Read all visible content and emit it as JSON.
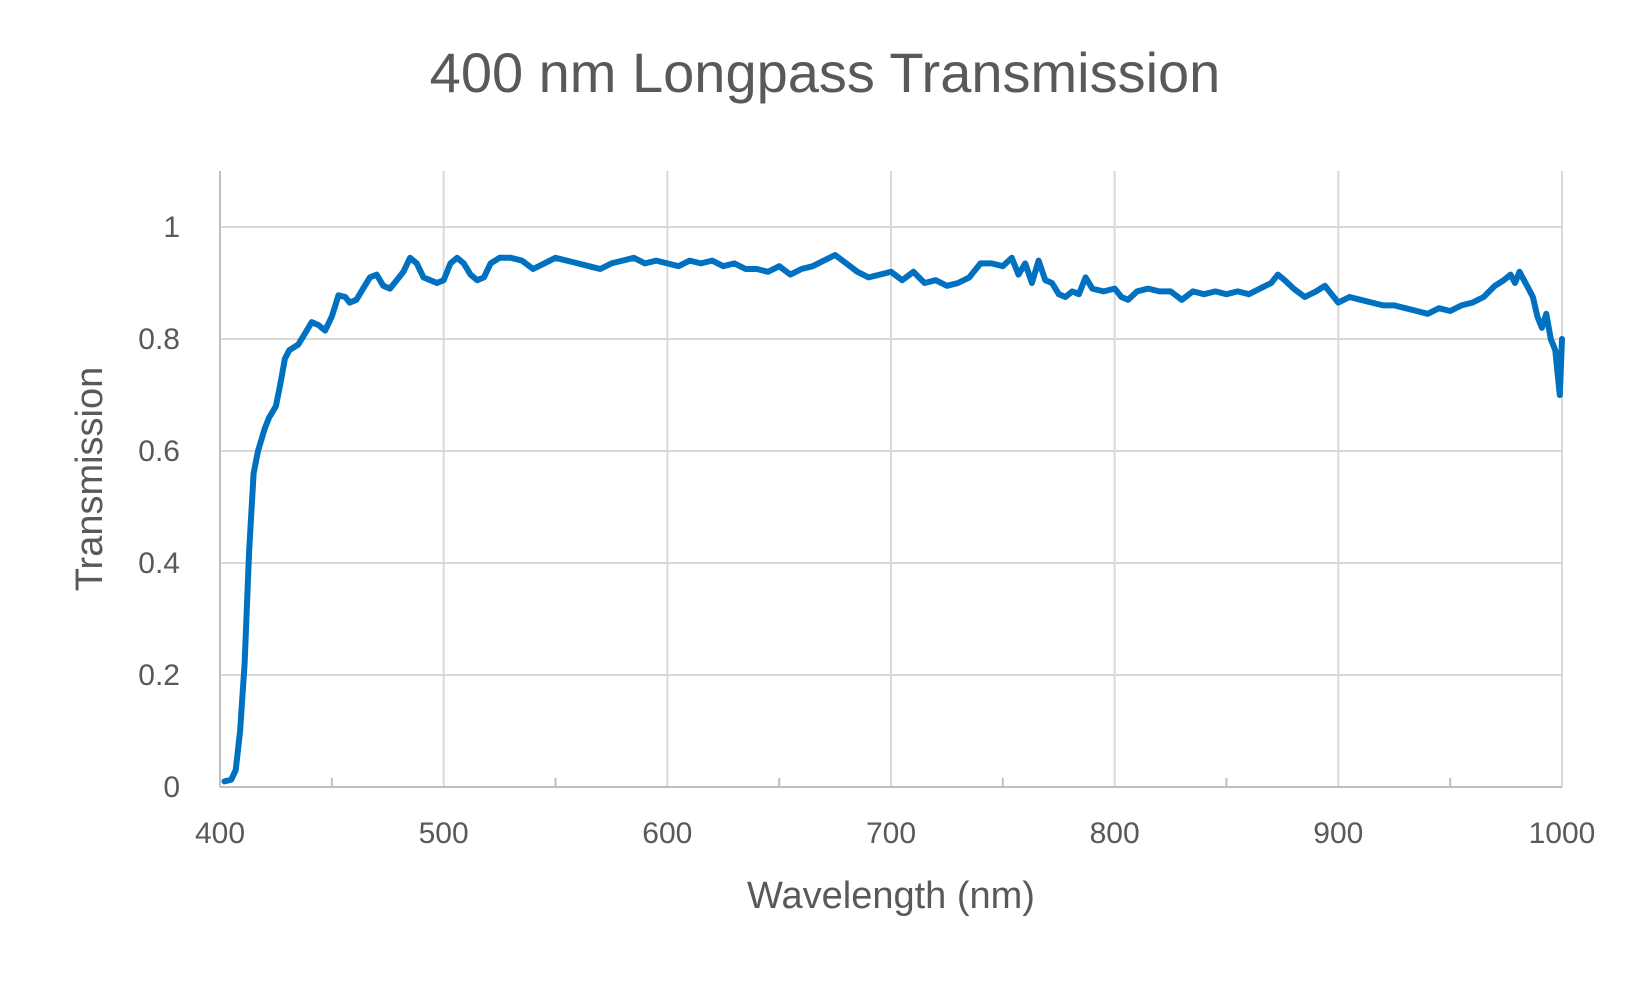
{
  "chart_data": {
    "type": "line",
    "title": "400 nm Longpass Transmission",
    "xlabel": "Wavelength (nm)",
    "ylabel": "Transmission",
    "xlim": [
      400,
      1000
    ],
    "ylim": [
      0,
      1.1
    ],
    "x_ticks": [
      400,
      500,
      600,
      700,
      800,
      900,
      1000
    ],
    "y_ticks": [
      0,
      0.2,
      0.4,
      0.6,
      0.8,
      1
    ],
    "y_tick_labels": [
      "0",
      "0.2",
      "0.4",
      "0.6",
      "0.8",
      "1"
    ],
    "x_minor_ticks": [
      450,
      550,
      650,
      750,
      850,
      950
    ],
    "grid": true,
    "line_color": "#0070c0",
    "series": [
      {
        "points": [
          [
            402,
            0.01
          ],
          [
            405,
            0.013
          ],
          [
            407,
            0.03
          ],
          [
            409,
            0.1
          ],
          [
            411,
            0.22
          ],
          [
            413,
            0.42
          ],
          [
            415,
            0.56
          ],
          [
            417,
            0.6
          ],
          [
            420,
            0.64
          ],
          [
            422,
            0.66
          ],
          [
            425,
            0.68
          ],
          [
            427,
            0.72
          ],
          [
            429,
            0.765
          ],
          [
            431,
            0.78
          ],
          [
            435,
            0.79
          ],
          [
            438,
            0.81
          ],
          [
            441,
            0.83
          ],
          [
            444,
            0.825
          ],
          [
            447,
            0.815
          ],
          [
            450,
            0.84
          ],
          [
            453,
            0.878
          ],
          [
            456,
            0.875
          ],
          [
            458,
            0.865
          ],
          [
            461,
            0.87
          ],
          [
            464,
            0.89
          ],
          [
            467,
            0.91
          ],
          [
            470,
            0.915
          ],
          [
            473,
            0.895
          ],
          [
            476,
            0.89
          ],
          [
            479,
            0.905
          ],
          [
            482,
            0.92
          ],
          [
            485,
            0.945
          ],
          [
            488,
            0.935
          ],
          [
            491,
            0.91
          ],
          [
            494,
            0.905
          ],
          [
            497,
            0.9
          ],
          [
            500,
            0.905
          ],
          [
            503,
            0.935
          ],
          [
            506,
            0.945
          ],
          [
            509,
            0.935
          ],
          [
            512,
            0.915
          ],
          [
            515,
            0.905
          ],
          [
            518,
            0.91
          ],
          [
            521,
            0.935
          ],
          [
            525,
            0.945
          ],
          [
            530,
            0.945
          ],
          [
            535,
            0.94
          ],
          [
            540,
            0.925
          ],
          [
            545,
            0.935
          ],
          [
            550,
            0.945
          ],
          [
            555,
            0.94
          ],
          [
            560,
            0.935
          ],
          [
            565,
            0.93
          ],
          [
            570,
            0.925
          ],
          [
            575,
            0.935
          ],
          [
            580,
            0.94
          ],
          [
            585,
            0.945
          ],
          [
            590,
            0.935
          ],
          [
            595,
            0.94
          ],
          [
            600,
            0.935
          ],
          [
            605,
            0.93
          ],
          [
            610,
            0.94
          ],
          [
            615,
            0.935
          ],
          [
            620,
            0.94
          ],
          [
            625,
            0.93
          ],
          [
            630,
            0.935
          ],
          [
            635,
            0.925
          ],
          [
            640,
            0.925
          ],
          [
            645,
            0.92
          ],
          [
            650,
            0.93
          ],
          [
            655,
            0.915
          ],
          [
            660,
            0.925
          ],
          [
            665,
            0.93
          ],
          [
            670,
            0.94
          ],
          [
            675,
            0.95
          ],
          [
            680,
            0.935
          ],
          [
            685,
            0.92
          ],
          [
            690,
            0.91
          ],
          [
            695,
            0.915
          ],
          [
            700,
            0.92
          ],
          [
            705,
            0.905
          ],
          [
            710,
            0.92
          ],
          [
            715,
            0.9
          ],
          [
            720,
            0.905
          ],
          [
            725,
            0.895
          ],
          [
            730,
            0.9
          ],
          [
            735,
            0.91
          ],
          [
            740,
            0.935
          ],
          [
            745,
            0.935
          ],
          [
            750,
            0.93
          ],
          [
            754,
            0.945
          ],
          [
            757,
            0.915
          ],
          [
            760,
            0.935
          ],
          [
            763,
            0.9
          ],
          [
            766,
            0.94
          ],
          [
            769,
            0.905
          ],
          [
            772,
            0.9
          ],
          [
            775,
            0.88
          ],
          [
            778,
            0.875
          ],
          [
            781,
            0.885
          ],
          [
            784,
            0.88
          ],
          [
            787,
            0.91
          ],
          [
            790,
            0.89
          ],
          [
            795,
            0.885
          ],
          [
            800,
            0.89
          ],
          [
            803,
            0.875
          ],
          [
            806,
            0.87
          ],
          [
            810,
            0.885
          ],
          [
            815,
            0.89
          ],
          [
            820,
            0.885
          ],
          [
            825,
            0.885
          ],
          [
            830,
            0.87
          ],
          [
            835,
            0.885
          ],
          [
            840,
            0.88
          ],
          [
            845,
            0.885
          ],
          [
            850,
            0.88
          ],
          [
            855,
            0.885
          ],
          [
            860,
            0.88
          ],
          [
            865,
            0.89
          ],
          [
            870,
            0.9
          ],
          [
            873,
            0.915
          ],
          [
            876,
            0.905
          ],
          [
            880,
            0.89
          ],
          [
            885,
            0.875
          ],
          [
            890,
            0.885
          ],
          [
            894,
            0.895
          ],
          [
            897,
            0.88
          ],
          [
            900,
            0.865
          ],
          [
            905,
            0.875
          ],
          [
            910,
            0.87
          ],
          [
            915,
            0.865
          ],
          [
            920,
            0.86
          ],
          [
            925,
            0.86
          ],
          [
            930,
            0.855
          ],
          [
            935,
            0.85
          ],
          [
            940,
            0.845
          ],
          [
            945,
            0.855
          ],
          [
            950,
            0.85
          ],
          [
            955,
            0.86
          ],
          [
            960,
            0.865
          ],
          [
            965,
            0.875
          ],
          [
            970,
            0.895
          ],
          [
            974,
            0.905
          ],
          [
            977,
            0.915
          ],
          [
            979,
            0.9
          ],
          [
            981,
            0.92
          ],
          [
            983,
            0.905
          ],
          [
            985,
            0.89
          ],
          [
            987,
            0.875
          ],
          [
            989,
            0.84
          ],
          [
            991,
            0.82
          ],
          [
            993,
            0.845
          ],
          [
            995,
            0.8
          ],
          [
            997,
            0.78
          ],
          [
            998,
            0.74
          ],
          [
            999,
            0.7
          ],
          [
            1000,
            0.8
          ]
        ]
      }
    ]
  }
}
